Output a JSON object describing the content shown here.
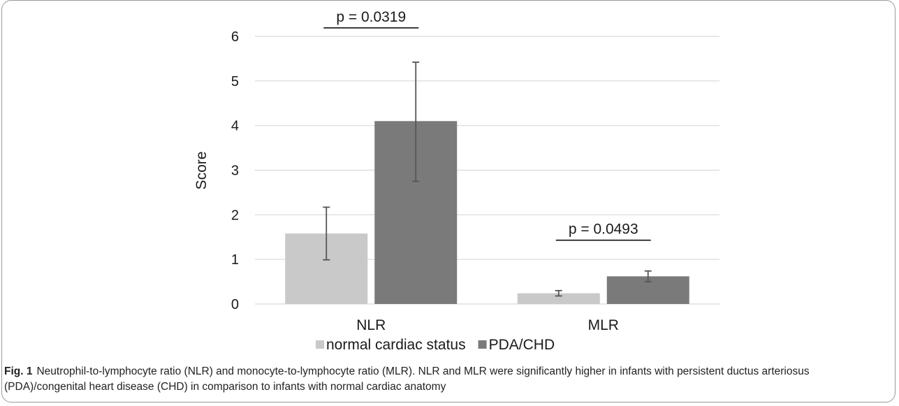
{
  "chart_data": {
    "type": "bar",
    "categories": [
      "NLR",
      "MLR"
    ],
    "series": [
      {
        "name": "normal cardiac status",
        "values": [
          1.58,
          0.24
        ],
        "error_low": [
          0.99,
          0.18
        ],
        "error_high": [
          2.17,
          0.3
        ],
        "color": "#c9c9c9"
      },
      {
        "name": "PDA/CHD",
        "values": [
          4.1,
          0.62
        ],
        "error_low": [
          2.75,
          0.5
        ],
        "error_high": [
          5.42,
          0.74
        ],
        "color": "#7a7a7a"
      }
    ],
    "ylabel": "Score",
    "xlabel": "",
    "ylim": [
      0,
      6
    ],
    "yticks": [
      "0",
      "1",
      "2",
      "3",
      "4",
      "5",
      "6"
    ],
    "grid": true,
    "legend_position": "bottom",
    "annotations": [
      {
        "text": "p = 0.0319",
        "category": "NLR",
        "y": 6.19
      },
      {
        "text": "p = 0.0493",
        "category": "MLR",
        "y": 1.43
      }
    ]
  },
  "caption": {
    "label": "Fig. 1",
    "text": "Neutrophil-to-lymphocyte ratio (NLR) and monocyte-to-lymphocyte ratio (MLR). NLR and MLR were significantly higher in infants with persistent ductus arteriosus (PDA)/congenital heart disease (CHD) in comparison to infants with normal cardiac anatomy"
  },
  "colors": {
    "grid": "#d9d9d9",
    "axis_text": "#1a1a1a",
    "error_bar": "#555555",
    "annotation_line": "#222222"
  }
}
